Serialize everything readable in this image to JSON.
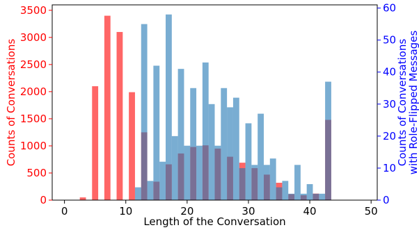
{
  "chart_data": {
    "type": "bar",
    "title": "",
    "xlabel": "Length of the Conversation",
    "ylabel_left": "Counts of Conversations",
    "ylabel_right_lines": [
      "Counts of Conversations",
      "with Role-Flipped Messages"
    ],
    "xlim": [
      -2,
      51
    ],
    "ylim_left": [
      0,
      3600
    ],
    "ylim_right": [
      0,
      61
    ],
    "x_ticks": [
      0,
      10,
      20,
      30,
      40,
      50
    ],
    "y_ticks_left": [
      0,
      500,
      1000,
      1500,
      2000,
      2500,
      3000,
      3500
    ],
    "y_ticks_right": [
      0,
      10,
      20,
      30,
      40,
      50,
      60
    ],
    "grid": false,
    "colors": {
      "left_series": "#ff0000",
      "right_series": "#1f77b4",
      "right_axis": "#0000ff"
    },
    "series": [
      {
        "axis": "left",
        "x": [
          3,
          5,
          7,
          9,
          11,
          13,
          15,
          17,
          19,
          21,
          23,
          25,
          27,
          29,
          31,
          33,
          35,
          37,
          39,
          41,
          43
        ],
        "values": [
          50,
          2100,
          3400,
          3100,
          1990,
          1250,
          340,
          660,
          860,
          980,
          1010,
          950,
          800,
          690,
          590,
          470,
          320,
          110,
          90,
          120,
          1480
        ]
      },
      {
        "axis": "right",
        "x": [
          12,
          13,
          14,
          15,
          16,
          17,
          18,
          19,
          20,
          21,
          22,
          23,
          24,
          25,
          26,
          27,
          28,
          29,
          30,
          31,
          32,
          33,
          34,
          35,
          36,
          37,
          38,
          39,
          40,
          41,
          42,
          43
        ],
        "values": [
          4,
          55,
          6,
          42,
          12,
          58,
          20,
          41,
          17,
          35,
          17,
          43,
          30,
          17,
          35,
          29,
          32,
          10,
          24,
          11,
          27,
          11,
          13,
          4,
          6,
          2,
          11,
          2,
          5,
          2,
          2,
          37
        ]
      }
    ]
  }
}
